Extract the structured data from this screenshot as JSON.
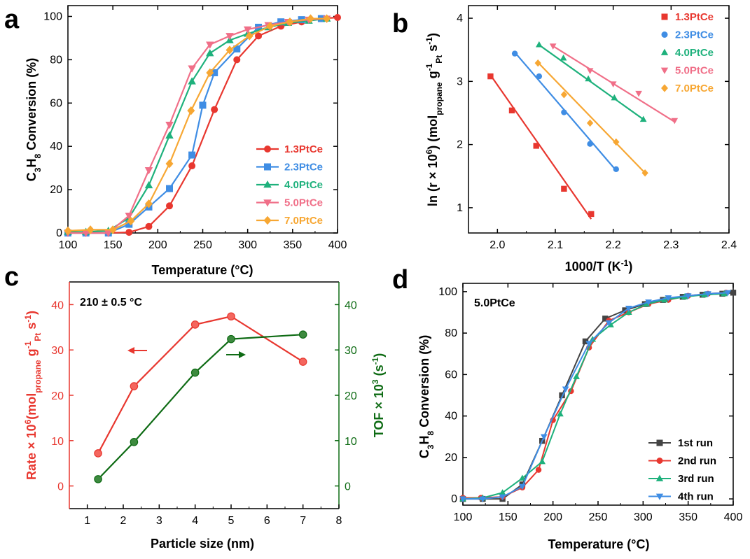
{
  "chart_data": [
    {
      "panel": "a",
      "type": "line",
      "xlabel": "Temperature (°C)",
      "ylabel": "C3H8 Conversion (%)",
      "xlim": [
        100,
        400
      ],
      "ylim": [
        0,
        105
      ],
      "xticks": [
        100,
        150,
        200,
        250,
        300,
        350,
        400
      ],
      "yticks": [
        0,
        20,
        40,
        60,
        80,
        100
      ],
      "legend_position": "bottom-right",
      "series": [
        {
          "name": "1.3PtCe",
          "color": "#e8372f",
          "marker": "circle",
          "x": [
            100,
            120,
            145,
            168,
            190,
            213,
            238,
            263,
            288,
            312,
            337,
            360,
            382,
            400
          ],
          "y": [
            0,
            0,
            0,
            0.3,
            3,
            12.5,
            31,
            57,
            80,
            91,
            95.5,
            97.5,
            99,
            99.5
          ]
        },
        {
          "name": "2.3PtCe",
          "color": "#3f8de4",
          "marker": "square",
          "x": [
            100,
            120,
            145,
            168,
            190,
            213,
            238,
            250,
            263,
            288,
            312,
            337,
            360,
            382
          ],
          "y": [
            0,
            0,
            0,
            4,
            12,
            20.5,
            36,
            59,
            74,
            85,
            95,
            97.5,
            98.5,
            99
          ]
        },
        {
          "name": "4.0PtCe",
          "color": "#1eb17c",
          "marker": "triangle-up",
          "x": [
            100,
            120,
            145,
            168,
            190,
            213,
            238,
            258,
            280,
            300,
            323,
            345,
            368,
            388
          ],
          "y": [
            0.5,
            0.5,
            1,
            7,
            22,
            45,
            70,
            83,
            89,
            92,
            95,
            97,
            98,
            99
          ]
        },
        {
          "name": "5.0PtCe",
          "color": "#f06f88",
          "marker": "triangle-down",
          "x": [
            100,
            120,
            145,
            168,
            190,
            213,
            238,
            258,
            280,
            300,
            323,
            345,
            368,
            388
          ],
          "y": [
            0,
            0,
            0,
            8,
            29,
            50,
            76,
            87,
            91,
            94,
            96,
            97.5,
            98.5,
            99
          ]
        },
        {
          "name": "7.0PtCe",
          "color": "#f7a733",
          "marker": "diamond",
          "x": [
            100,
            125,
            150,
            170,
            190,
            213,
            237,
            258,
            280,
            302,
            325,
            347,
            370,
            388
          ],
          "y": [
            1,
            1.5,
            1.5,
            5.5,
            13.5,
            32,
            56.5,
            74,
            84.5,
            91,
            95.5,
            97.5,
            99,
            99
          ]
        }
      ]
    },
    {
      "panel": "b",
      "type": "scatter",
      "xlabel": "1000/T (K-1)",
      "ylabel": "ln (r × 10^6) (mol_propane g_Pt^-1 s^-1)",
      "xlim": [
        1.95,
        2.4
      ],
      "ylim": [
        0.6,
        4.2
      ],
      "xticks": [
        2.0,
        2.1,
        2.2,
        2.3,
        2.4
      ],
      "yticks": [
        1,
        2,
        3,
        4
      ],
      "legend_position": "top-right",
      "series": [
        {
          "name": "1.3PtCe",
          "color": "#e8372f",
          "marker": "square",
          "x": [
            1.988,
            2.025,
            2.067,
            2.115,
            2.162
          ],
          "y": [
            3.08,
            2.54,
            1.98,
            1.3,
            0.9
          ],
          "fit": [
            [
              1.988,
              3.1
            ],
            [
              2.162,
              0.82
            ]
          ]
        },
        {
          "name": "2.3PtCe",
          "color": "#3f8de4",
          "marker": "circle",
          "x": [
            2.03,
            2.072,
            2.115,
            2.16,
            2.205
          ],
          "y": [
            3.44,
            3.08,
            2.51,
            2.01,
            1.61
          ],
          "fit": [
            [
              2.03,
              3.46
            ],
            [
              2.205,
              1.59
            ]
          ]
        },
        {
          "name": "4.0PtCe",
          "color": "#1eb17c",
          "marker": "triangle-up",
          "x": [
            2.072,
            2.114,
            2.157,
            2.202,
            2.252
          ],
          "y": [
            3.58,
            3.37,
            3.04,
            2.74,
            2.4
          ],
          "fit": [
            [
              2.07,
              3.59
            ],
            [
              2.255,
              2.38
            ]
          ]
        },
        {
          "name": "5.0PtCe",
          "color": "#f06f88",
          "marker": "triangle-down",
          "x": [
            2.096,
            2.16,
            2.2,
            2.244,
            2.306
          ],
          "y": [
            3.56,
            3.17,
            2.96,
            2.81,
            2.38
          ],
          "fit": [
            [
              2.096,
              3.56
            ],
            [
              2.306,
              2.36
            ]
          ]
        },
        {
          "name": "7.0PtCe",
          "color": "#f7a733",
          "marker": "diamond",
          "x": [
            2.07,
            2.115,
            2.16,
            2.205,
            2.255
          ],
          "y": [
            3.29,
            2.79,
            2.34,
            2.04,
            1.55
          ],
          "fit": [
            [
              2.07,
              3.3
            ],
            [
              2.255,
              1.55
            ]
          ]
        }
      ]
    },
    {
      "panel": "c",
      "type": "line",
      "xlabel": "Particle size (nm)",
      "ylabel_left": "Rate × 10^6(mol_propane g_Pt^-1 s^-1)",
      "ylabel_right": "TOF × 10^3 (s^-1)",
      "annotation": "210 ± 0.5 °C",
      "xlim": [
        0.5,
        8
      ],
      "ylim": [
        -5,
        45
      ],
      "xticks": [
        1,
        2,
        3,
        4,
        5,
        6,
        7,
        8
      ],
      "yticks": [
        0,
        10,
        20,
        30,
        40
      ],
      "left_color": "#e8372f",
      "right_color": "#0e6b14",
      "series": [
        {
          "name": "Rate",
          "axis": "left",
          "color": "#e8372f",
          "x": [
            1.3,
            2.3,
            4.0,
            5.0,
            7.0
          ],
          "y": [
            7.2,
            22.0,
            35.6,
            37.4,
            27.4
          ]
        },
        {
          "name": "TOF",
          "axis": "right",
          "color": "#0e6b14",
          "x": [
            1.3,
            2.3,
            4.0,
            5.0,
            7.0
          ],
          "y": [
            1.5,
            9.7,
            25.0,
            32.4,
            33.4
          ]
        }
      ]
    },
    {
      "panel": "d",
      "type": "line",
      "xlabel": "Temperature (°C)",
      "ylabel": "C3H8 Conversion (%)",
      "annotation": "5.0PtCe",
      "xlim": [
        100,
        400
      ],
      "ylim": [
        -3,
        104
      ],
      "xticks": [
        100,
        150,
        200,
        250,
        300,
        350,
        400
      ],
      "yticks": [
        0,
        20,
        40,
        60,
        80,
        100
      ],
      "legend_position": "bottom-right",
      "series": [
        {
          "name": "1st run",
          "color": "#444444",
          "marker": "square",
          "x": [
            100,
            122,
            144,
            166,
            188,
            210,
            236,
            258,
            280,
            302,
            322,
            344,
            366,
            388,
            400
          ],
          "y": [
            0,
            0,
            0,
            7,
            28,
            50,
            76,
            87,
            91,
            94,
            96,
            97.5,
            98.5,
            99,
            99.5
          ]
        },
        {
          "name": "2nd run",
          "color": "#e8372f",
          "marker": "circle",
          "x": [
            100,
            120,
            144,
            166,
            184,
            200,
            220,
            240,
            262,
            284,
            306,
            328,
            350,
            372,
            392
          ],
          "y": [
            0.5,
            0.5,
            1,
            5.5,
            14,
            38,
            52,
            73,
            86,
            90,
            94,
            96,
            98,
            99,
            99.5
          ]
        },
        {
          "name": "3rd run",
          "color": "#1eb17c",
          "marker": "triangle-up",
          "x": [
            100,
            122,
            144,
            166,
            188,
            208,
            226,
            244,
            264,
            284,
            304,
            324,
            346,
            368,
            390
          ],
          "y": [
            0,
            0.5,
            3,
            10,
            18,
            41,
            59,
            77,
            84,
            90,
            94,
            96,
            97.5,
            98.5,
            99
          ]
        },
        {
          "name": "4th run",
          "color": "#3f8de4",
          "marker": "triangle-down",
          "x": [
            100,
            122,
            144,
            166,
            190,
            214,
            240,
            262,
            284,
            306,
            328,
            350,
            372,
            394
          ],
          "y": [
            0,
            0,
            1,
            6,
            30,
            53,
            75,
            85,
            92,
            95,
            97,
            98,
            99,
            99.5
          ]
        }
      ]
    }
  ]
}
